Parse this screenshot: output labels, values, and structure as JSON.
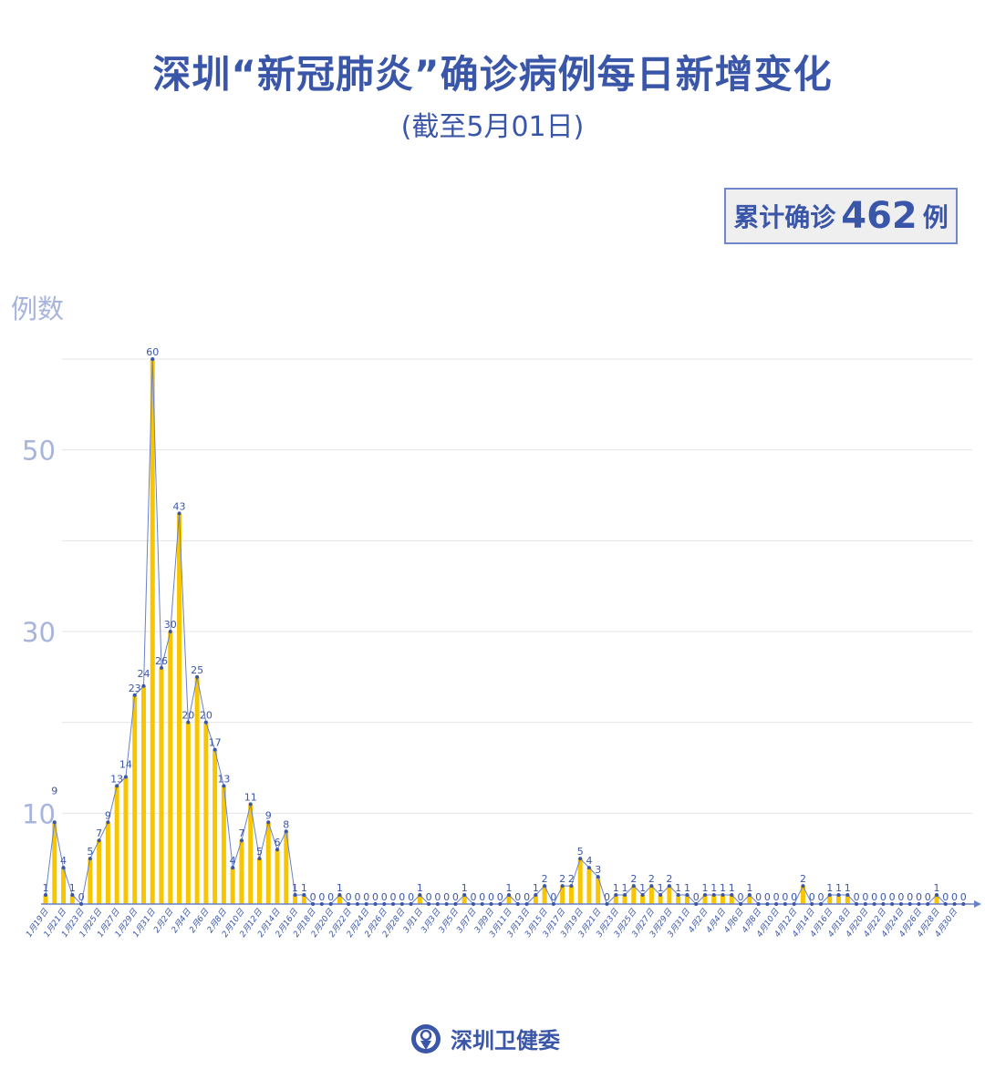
{
  "header": {
    "title": "深圳“新冠肺炎”确诊病例每日新增变化",
    "subtitle": "(截至5月01日)"
  },
  "summary": {
    "label": "累计确诊",
    "total": "462",
    "unit": "例"
  },
  "footer": {
    "org_name": "深圳卫健委",
    "logo_icon": "shenzhen-health-commission-logo"
  },
  "colors": {
    "text": "#3a56a9",
    "bar": "#f7c600",
    "line": "#6a80cc",
    "marker": "#3a56a9",
    "axis_tick_label": "#a7b4dc",
    "grid": "#e4e4e4"
  },
  "chart_data": {
    "type": "bar",
    "ylabel": "例数",
    "ylim": [
      0,
      60
    ],
    "y_ticks": [
      10,
      30,
      50
    ],
    "grid": true,
    "overlay": "line-with-markers",
    "x_tick_labels": [
      "1月19日",
      "1月21日",
      "1月23日",
      "1月25日",
      "1月27日",
      "1月29日",
      "1月31日",
      "2月2日",
      "2月4日",
      "2月6日",
      "2月8日",
      "2月10日",
      "2月12日",
      "2月14日",
      "2月16日",
      "2月18日",
      "2月20日",
      "2月22日",
      "2月24日",
      "2月26日",
      "2月28日",
      "3月1日",
      "3月3日",
      "3月5日",
      "3月7日",
      "3月9日",
      "3月11日",
      "3月13日",
      "3月15日",
      "3月17日",
      "3月19日",
      "3月21日",
      "3月23日",
      "3月25日",
      "3月27日",
      "3月29日",
      "3月31日",
      "4月2日",
      "4月4日",
      "4月6日",
      "4月8日",
      "4月10日",
      "4月12日",
      "4月14日",
      "4月16日",
      "4月18日",
      "4月20日",
      "4月22日",
      "4月24日",
      "4月26日",
      "4月28日",
      "4月30日"
    ],
    "values": [
      1,
      9,
      4,
      1,
      0,
      5,
      7,
      9,
      13,
      14,
      23,
      24,
      60,
      26,
      30,
      43,
      20,
      25,
      20,
      17,
      13,
      4,
      7,
      11,
      5,
      9,
      6,
      8,
      1,
      1,
      0,
      0,
      0,
      1,
      0,
      0,
      0,
      0,
      0,
      0,
      0,
      0,
      1,
      0,
      0,
      0,
      0,
      1,
      0,
      0,
      0,
      0,
      1,
      0,
      0,
      1,
      2,
      0,
      2,
      2,
      5,
      4,
      3,
      0,
      1,
      1,
      2,
      1,
      2,
      1,
      2,
      1,
      1,
      0,
      1,
      1,
      1,
      1,
      0,
      1,
      0,
      0,
      0,
      0,
      0,
      2,
      0,
      0,
      1,
      1,
      1,
      0,
      0,
      0,
      0,
      0,
      0,
      0,
      0,
      0,
      1,
      0,
      0,
      0
    ]
  }
}
